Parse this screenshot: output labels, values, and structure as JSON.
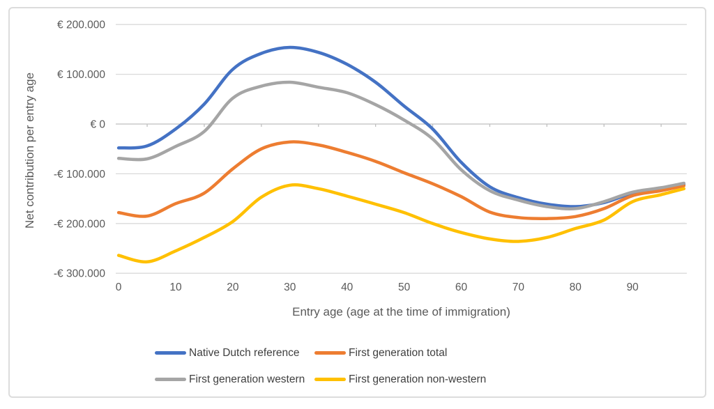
{
  "chart": {
    "y_axis": {
      "title": "Net contribution per entry age",
      "tick_labels": [
        "€ 200.000",
        "€ 100.000",
        "€ 0",
        "-€ 100.000",
        "-€ 200.000",
        "-€ 300.000"
      ],
      "tick_values": [
        200000,
        100000,
        0,
        -100000,
        -200000,
        -300000
      ]
    },
    "x_axis": {
      "title": "Entry age (age at the time of immigration)",
      "tick_labels": [
        "0",
        "10",
        "20",
        "30",
        "40",
        "50",
        "60",
        "70",
        "80",
        "90"
      ],
      "tick_values": [
        0,
        10,
        20,
        30,
        40,
        50,
        60,
        70,
        80,
        90
      ]
    },
    "colors": {
      "gridline": "#d9d9d9",
      "axis_line": "#bfbfbf",
      "tick_label": "#595959",
      "axis_title": "#595959",
      "legend_text": "#3f3f3f",
      "frame_border": "#dcdcdc"
    }
  },
  "chart_data": {
    "type": "line",
    "title": "",
    "xlabel": "Entry age (age at the time of immigration)",
    "ylabel": "Net contribution per entry age",
    "xlim": [
      0,
      99
    ],
    "ylim": [
      -300000,
      200000
    ],
    "grid": true,
    "legend_position": "bottom",
    "line_style": "smooth",
    "x": [
      0,
      5,
      10,
      15,
      20,
      25,
      30,
      35,
      40,
      45,
      50,
      55,
      60,
      65,
      70,
      75,
      80,
      85,
      90,
      95,
      99
    ],
    "series": [
      {
        "name": "Native Dutch reference",
        "color": "#4472c4",
        "values": [
          -48000,
          -44000,
          -10000,
          40000,
          110000,
          142000,
          154000,
          144000,
          120000,
          84000,
          36000,
          -10000,
          -77000,
          -126000,
          -148000,
          -161000,
          -166000,
          -158000,
          -139000,
          -129000,
          -121000
        ]
      },
      {
        "name": "First generation total",
        "color": "#ed7d31",
        "values": [
          -178000,
          -185000,
          -160000,
          -139000,
          -90000,
          -50000,
          -36000,
          -42000,
          -57000,
          -75000,
          -98000,
          -120000,
          -146000,
          -177000,
          -188000,
          -190000,
          -186000,
          -170000,
          -144000,
          -134000,
          -124000
        ]
      },
      {
        "name": "First generation western",
        "color": "#a5a5a5",
        "values": [
          -69000,
          -70000,
          -45000,
          -15000,
          52000,
          76000,
          84000,
          74000,
          63000,
          39000,
          8000,
          -30000,
          -92000,
          -134000,
          -153000,
          -166000,
          -170000,
          -156000,
          -137000,
          -128000,
          -119000
        ]
      },
      {
        "name": "First generation non-western",
        "color": "#ffc000",
        "values": [
          -264000,
          -277000,
          -255000,
          -228000,
          -196000,
          -147000,
          -123000,
          -130000,
          -145000,
          -161000,
          -178000,
          -200000,
          -218000,
          -231000,
          -236000,
          -228000,
          -210000,
          -193000,
          -156000,
          -142000,
          -130000
        ]
      }
    ]
  }
}
